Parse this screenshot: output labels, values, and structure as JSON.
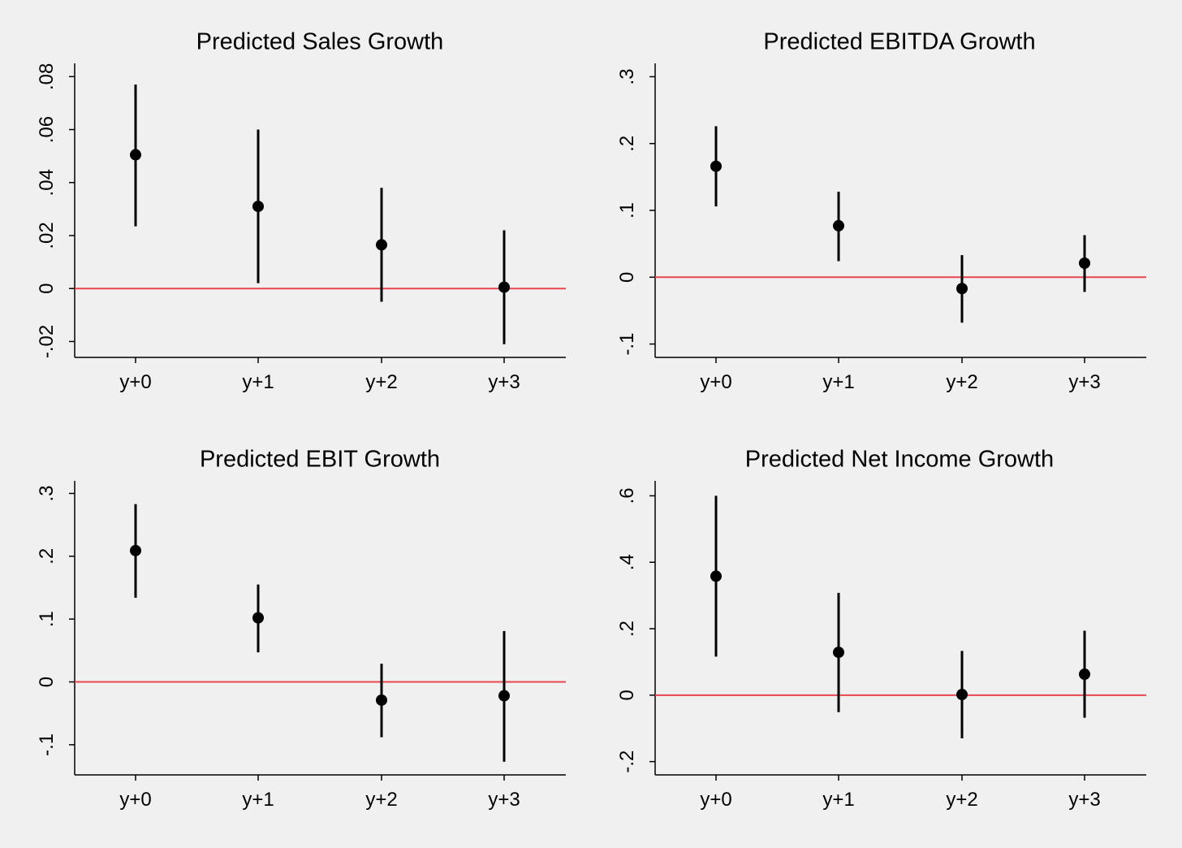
{
  "zero_line_color": "#e8474f",
  "marker_color": "#000000",
  "background_color": "#f0f0f0",
  "chart_data": [
    {
      "type": "scatter",
      "title": "Predicted Sales Growth",
      "categories": [
        "y+0",
        "y+1",
        "y+2",
        "y+3"
      ],
      "ylim": [
        -0.026,
        0.085
      ],
      "yticks": [
        -0.02,
        0,
        0.02,
        0.04,
        0.06,
        0.08
      ],
      "ytick_labels": [
        "-.02",
        "0",
        ".02",
        ".04",
        ".06",
        ".08"
      ],
      "estimates": [
        0.0505,
        0.031,
        0.0165,
        0.0005
      ],
      "ci_low": [
        0.0235,
        0.002,
        -0.005,
        -0.021
      ],
      "ci_high": [
        0.077,
        0.06,
        0.038,
        0.022
      ],
      "reference_line": 0,
      "grid": false
    },
    {
      "type": "scatter",
      "title": "Predicted EBITDA Growth",
      "categories": [
        "y+0",
        "y+1",
        "y+2",
        "y+3"
      ],
      "ylim": [
        -0.12,
        0.32
      ],
      "yticks": [
        -0.1,
        0,
        0.1,
        0.2,
        0.3
      ],
      "ytick_labels": [
        "-.1",
        "0",
        ".1",
        ".2",
        ".3"
      ],
      "estimates": [
        0.166,
        0.077,
        -0.017,
        0.021
      ],
      "ci_low": [
        0.106,
        0.024,
        -0.068,
        -0.022
      ],
      "ci_high": [
        0.226,
        0.128,
        0.033,
        0.063
      ],
      "reference_line": 0,
      "grid": false
    },
    {
      "type": "scatter",
      "title": "Predicted EBIT Growth",
      "categories": [
        "y+0",
        "y+1",
        "y+2",
        "y+3"
      ],
      "ylim": [
        -0.148,
        0.32
      ],
      "yticks": [
        -0.1,
        0,
        0.1,
        0.2,
        0.3
      ],
      "ytick_labels": [
        "-.1",
        "0",
        ".1",
        ".2",
        ".3"
      ],
      "estimates": [
        0.209,
        0.102,
        -0.029,
        -0.022
      ],
      "ci_low": [
        0.134,
        0.047,
        -0.088,
        -0.127
      ],
      "ci_high": [
        0.283,
        0.155,
        0.029,
        0.081
      ],
      "reference_line": 0,
      "grid": false
    },
    {
      "type": "scatter",
      "title": "Predicted Net Income Growth",
      "categories": [
        "y+0",
        "y+1",
        "y+2",
        "y+3"
      ],
      "ylim": [
        -0.24,
        0.645
      ],
      "yticks": [
        -0.2,
        0,
        0.2,
        0.4,
        0.6
      ],
      "ytick_labels": [
        "-.2",
        "0",
        ".2",
        ".4",
        ".6"
      ],
      "estimates": [
        0.358,
        0.129,
        0.002,
        0.063
      ],
      "ci_low": [
        0.116,
        -0.051,
        -0.13,
        -0.068
      ],
      "ci_high": [
        0.6,
        0.308,
        0.133,
        0.194
      ],
      "reference_line": 0,
      "grid": false
    }
  ]
}
